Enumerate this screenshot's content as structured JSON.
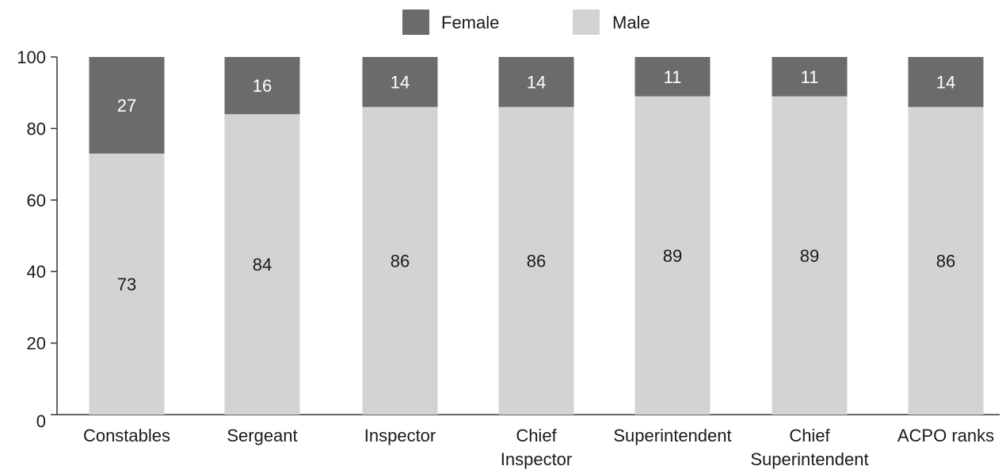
{
  "chart_data": {
    "type": "bar",
    "stacked": true,
    "categories": [
      [
        "Constables"
      ],
      [
        "Sergeant"
      ],
      [
        "Inspector"
      ],
      [
        "Chief",
        "Inspector"
      ],
      [
        "Superintendent"
      ],
      [
        "Chief",
        "Superintendent"
      ],
      [
        "ACPO ranks"
      ]
    ],
    "series": [
      {
        "name": "Male",
        "values": [
          73,
          84,
          86,
          86,
          89,
          89,
          86
        ],
        "color": "#d3d3d3",
        "label_color": "#1a1a1a"
      },
      {
        "name": "Female",
        "values": [
          27,
          16,
          14,
          14,
          11,
          11,
          14
        ],
        "color": "#6b6b6b",
        "label_color": "#ffffff"
      }
    ],
    "legend": {
      "placement": "top-center",
      "order": [
        "Female",
        "Male"
      ]
    },
    "ylim": [
      0,
      100
    ],
    "yticks": [
      0,
      20,
      40,
      60,
      80,
      100
    ],
    "grid": false,
    "xlabel": "",
    "ylabel": "",
    "title": ""
  }
}
